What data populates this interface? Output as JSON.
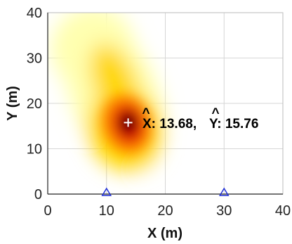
{
  "chart_data": {
    "type": "heatmap",
    "xlabel": "X (m)",
    "ylabel": "Y (m)",
    "xlim": [
      0,
      40
    ],
    "ylim": [
      0,
      40
    ],
    "x_ticks": [
      "0",
      "10",
      "20",
      "30",
      "40"
    ],
    "y_ticks": [
      "0",
      "10",
      "20",
      "30",
      "40"
    ],
    "grid": true,
    "colormap": [
      "#ffffff",
      "#ffffb0",
      "#ffd700",
      "#ff8000",
      "#e00000",
      "#000000"
    ],
    "estimate": {
      "x": 13.68,
      "y": 15.76
    },
    "annotation": {
      "x_part": "X: 13.68,",
      "y_part": "Y: 15.76",
      "hat": "^"
    },
    "anchors": [
      {
        "x": 10,
        "y": 0
      },
      {
        "x": 30,
        "y": 0
      }
    ],
    "anchor_color": "#1f2fd6",
    "estimate_marker_color": "#ffffff"
  }
}
